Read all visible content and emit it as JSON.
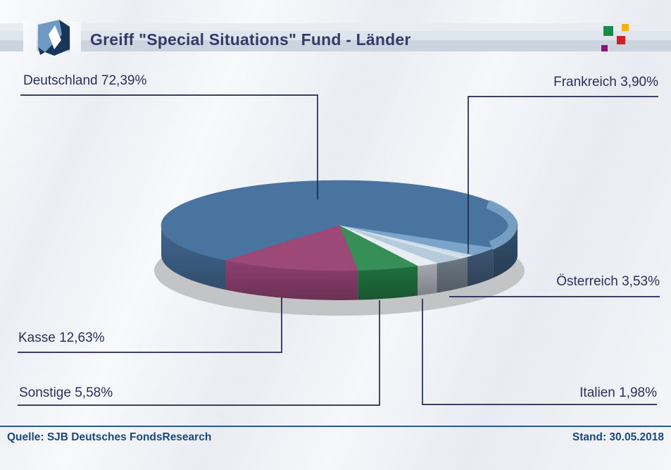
{
  "header": {
    "title": "Greiff \"Special Situations\" Fund - Länder",
    "logo_name": "sjb-logo",
    "logo_colors": {
      "light_blue": "#6f9ac5",
      "navy": "#17365a",
      "diamond": "#ffffff"
    },
    "decor_squares": [
      {
        "name": "green-square",
        "color": "#1a8a47"
      },
      {
        "name": "yellow-square",
        "color": "#f5b318"
      },
      {
        "name": "red-square",
        "color": "#d01f26"
      },
      {
        "name": "purple-square",
        "color": "#8a1478"
      }
    ]
  },
  "chart_data": {
    "type": "pie",
    "three_d": true,
    "title": "Greiff \"Special Situations\" Fund - Länder",
    "unit": "percent",
    "direction": "clockwise",
    "start_angle_deg": 129.5,
    "slices": [
      {
        "id": "deutschland",
        "name": "Deutschland",
        "value": 72.39,
        "label": "Deutschland 72,39%",
        "top": "#4a74a0",
        "side": "#33506c",
        "side_left": "#41678e"
      },
      {
        "id": "frankreich",
        "name": "Frankreich",
        "value": 3.9,
        "label": "Frankreich 3,90%",
        "top": "#7ba4c8",
        "side": "#3e5672"
      },
      {
        "id": "oesterreich",
        "name": "Österreich",
        "value": 3.53,
        "label": "Österreich 3,53%",
        "top": "#b6cbdb",
        "side": "#6c7884"
      },
      {
        "id": "italien",
        "name": "Italien",
        "value": 1.98,
        "label": "Italien 1,98%",
        "top": "#e9eef3",
        "side": "#a6aab0"
      },
      {
        "id": "sonstige",
        "name": "Sonstige",
        "value": 5.58,
        "label": "Sonstige 5,58%",
        "top": "#358f56",
        "side": "#1f7040"
      },
      {
        "id": "kasse",
        "name": "Kasse",
        "value": 12.63,
        "label": "Kasse 12,63%",
        "top": "#9c4978",
        "side": "#8d4070"
      }
    ],
    "rim_highlight": "#7ea6c9",
    "sheen": "#dde7ef",
    "shadow_color": "#c3c4c6",
    "leader_line_color": "#232850",
    "label_text_color": "#2a2f5c"
  },
  "footer": {
    "source": "Quelle: SJB Deutsches FondsResearch",
    "date": "Stand: 30.05.2018"
  }
}
